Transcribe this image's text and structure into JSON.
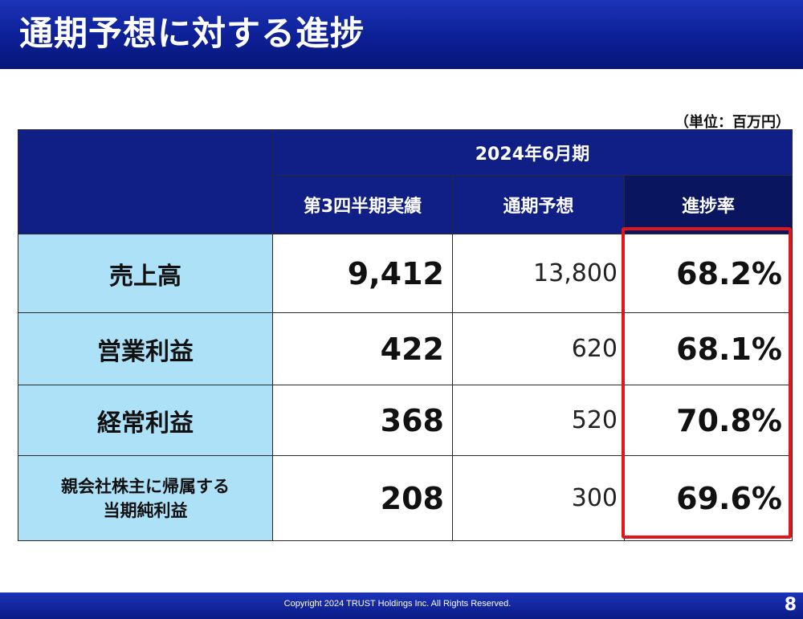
{
  "header": {
    "title": "通期予想に対する進捗"
  },
  "unit_note": "（単位：百万円）",
  "table": {
    "period": "2024年6月期",
    "columns": [
      "第3四半期実績",
      "通期予想",
      "進捗率"
    ],
    "rows": [
      {
        "label": "売上高",
        "actual": "9,412",
        "forecast": "13,800",
        "rate": "68.2%"
      },
      {
        "label": "営業利益",
        "actual": "422",
        "forecast": "620",
        "rate": "68.1%"
      },
      {
        "label": "経常利益",
        "actual": "368",
        "forecast": "520",
        "rate": "70.8%"
      },
      {
        "label_line1": "親会社株主に帰属する",
        "label_line2": "当期純利益",
        "actual": "208",
        "forecast": "300",
        "rate": "69.6%"
      }
    ]
  },
  "highlight_color": "#e0161b",
  "footer": {
    "copyright": "Copyright 2024 TRUST Holdings Inc. All Rights Reserved.",
    "page_number": "8"
  }
}
